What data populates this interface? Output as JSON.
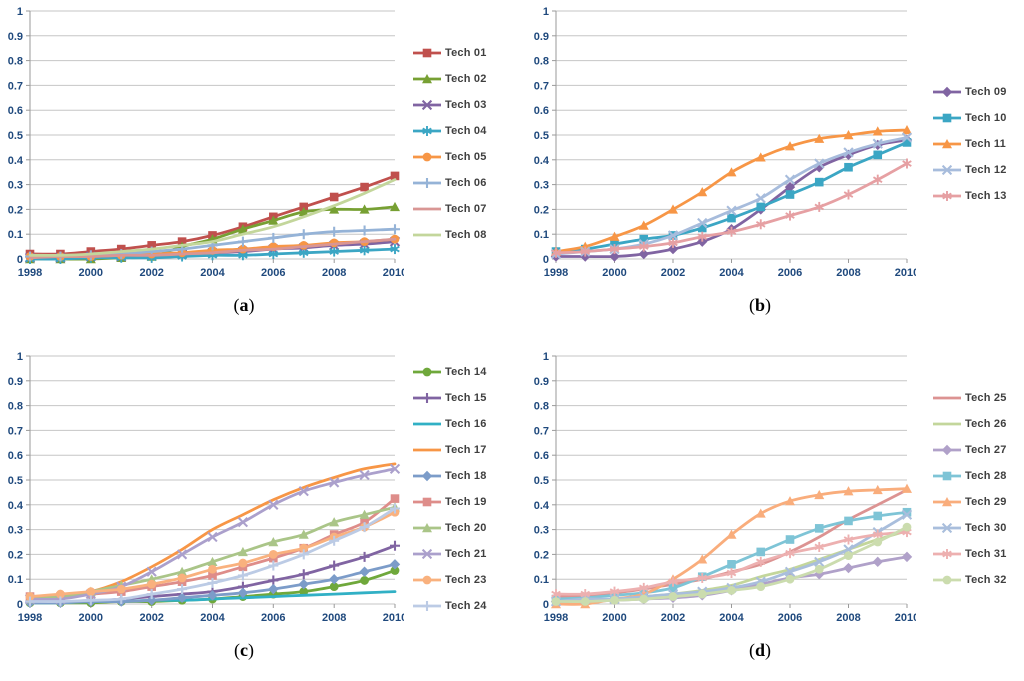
{
  "figure": {
    "background": "#FFFFFF",
    "gridline_color": "#C6C6C6",
    "axis_line_color": "#9A9A9A",
    "axis_label_color": "#1F497D",
    "legend_text_color": "#3F3F3F",
    "panel_captions": [
      "(a)",
      "(b)",
      "(c)",
      "(d)"
    ]
  },
  "chart_data": [
    {
      "id": "a",
      "type": "line",
      "caption_letter": "a",
      "title": "",
      "xlabel": "",
      "ylabel": "",
      "grid": true,
      "legend_position": "right",
      "ylim": [
        0,
        1
      ],
      "y_ticks": [
        "1",
        "0.9",
        "0.8",
        "0.7",
        "0.6",
        "0.5",
        "0.4",
        "0.3",
        "0.2",
        "0.1",
        "0"
      ],
      "x": [
        1998,
        1999,
        2000,
        2001,
        2002,
        2003,
        2004,
        2005,
        2006,
        2007,
        2008,
        2009,
        2010
      ],
      "x_ticks": [
        1998,
        2000,
        2002,
        2004,
        2006,
        2008,
        2010
      ],
      "series": [
        {
          "name": "Tech 01",
          "color": "#C0504D",
          "marker": "square",
          "values": [
            0.02,
            0.02,
            0.03,
            0.04,
            0.055,
            0.07,
            0.095,
            0.13,
            0.17,
            0.21,
            0.25,
            0.29,
            0.335
          ]
        },
        {
          "name": "Tech 02",
          "color": "#77A033",
          "marker": "triangle",
          "values": [
            0.0,
            0.0,
            0.0,
            0.005,
            0.01,
            0.05,
            0.08,
            0.12,
            0.155,
            0.19,
            0.2,
            0.2,
            0.21
          ]
        },
        {
          "name": "Tech 03",
          "color": "#8064A2",
          "marker": "x",
          "values": [
            0.005,
            0.005,
            0.01,
            0.01,
            0.015,
            0.02,
            0.025,
            0.03,
            0.04,
            0.045,
            0.055,
            0.06,
            0.07
          ]
        },
        {
          "name": "Tech 04",
          "color": "#3BA6C4",
          "marker": "asterisk",
          "values": [
            0.0,
            0.0,
            0.005,
            0.005,
            0.005,
            0.01,
            0.015,
            0.015,
            0.02,
            0.025,
            0.03,
            0.035,
            0.04
          ]
        },
        {
          "name": "Tech 05",
          "color": "#F79646",
          "marker": "circle",
          "values": [
            0.01,
            0.01,
            0.01,
            0.015,
            0.02,
            0.025,
            0.035,
            0.04,
            0.05,
            0.055,
            0.065,
            0.07,
            0.08
          ]
        },
        {
          "name": "Tech 06",
          "color": "#95B3D7",
          "marker": "plus",
          "values": [
            0.01,
            0.01,
            0.015,
            0.02,
            0.03,
            0.04,
            0.055,
            0.07,
            0.085,
            0.1,
            0.11,
            0.115,
            0.12
          ]
        },
        {
          "name": "Tech 07",
          "color": "#D99694",
          "marker": "none",
          "values": [
            0.005,
            0.01,
            0.01,
            0.015,
            0.015,
            0.02,
            0.025,
            0.035,
            0.04,
            0.05,
            0.06,
            0.07,
            0.08
          ]
        },
        {
          "name": "Tech 08",
          "color": "#C3D69B",
          "marker": "none",
          "values": [
            0.015,
            0.015,
            0.02,
            0.03,
            0.04,
            0.055,
            0.07,
            0.1,
            0.13,
            0.17,
            0.215,
            0.265,
            0.32
          ]
        }
      ]
    },
    {
      "id": "b",
      "type": "line",
      "caption_letter": "b",
      "title": "",
      "xlabel": "",
      "ylabel": "",
      "grid": true,
      "legend_position": "right",
      "ylim": [
        0,
        1
      ],
      "y_ticks": [
        "1",
        "0.9",
        "0.8",
        "0.7",
        "0.6",
        "0.5",
        "0.4",
        "0.3",
        "0.2",
        "0.1",
        "0"
      ],
      "x": [
        1998,
        1999,
        2000,
        2001,
        2002,
        2003,
        2004,
        2005,
        2006,
        2007,
        2008,
        2009,
        2010
      ],
      "x_ticks": [
        1998,
        2000,
        2002,
        2004,
        2006,
        2008,
        2010
      ],
      "series": [
        {
          "name": "Tech 09",
          "color": "#8064A2",
          "marker": "diamond",
          "values": [
            0.01,
            0.01,
            0.01,
            0.02,
            0.04,
            0.07,
            0.12,
            0.2,
            0.29,
            0.37,
            0.42,
            0.46,
            0.48
          ]
        },
        {
          "name": "Tech 10",
          "color": "#3BA6C4",
          "marker": "square",
          "values": [
            0.03,
            0.04,
            0.06,
            0.08,
            0.095,
            0.125,
            0.165,
            0.21,
            0.26,
            0.31,
            0.37,
            0.42,
            0.47
          ]
        },
        {
          "name": "Tech 11",
          "color": "#F79646",
          "marker": "triangle",
          "values": [
            0.03,
            0.05,
            0.09,
            0.135,
            0.2,
            0.27,
            0.35,
            0.41,
            0.455,
            0.485,
            0.5,
            0.515,
            0.52
          ]
        },
        {
          "name": "Tech 12",
          "color": "#A7BCDC",
          "marker": "x",
          "values": [
            0.02,
            0.03,
            0.04,
            0.06,
            0.095,
            0.145,
            0.195,
            0.245,
            0.32,
            0.385,
            0.43,
            0.465,
            0.49
          ]
        },
        {
          "name": "Tech 13",
          "color": "#E6A0A3",
          "marker": "asterisk",
          "values": [
            0.025,
            0.03,
            0.04,
            0.05,
            0.065,
            0.09,
            0.11,
            0.14,
            0.175,
            0.21,
            0.26,
            0.32,
            0.385
          ]
        }
      ]
    },
    {
      "id": "c",
      "type": "line",
      "caption_letter": "c",
      "title": "",
      "xlabel": "",
      "ylabel": "",
      "grid": true,
      "legend_position": "right",
      "ylim": [
        0,
        1
      ],
      "y_ticks": [
        "1",
        "0.9",
        "0.8",
        "0.7",
        "0.6",
        "0.5",
        "0.4",
        "0.3",
        "0.2",
        "0.1",
        "0"
      ],
      "x": [
        1998,
        1999,
        2000,
        2001,
        2002,
        2003,
        2004,
        2005,
        2006,
        2007,
        2008,
        2009,
        2010
      ],
      "x_ticks": [
        1998,
        2000,
        2002,
        2004,
        2006,
        2008,
        2010
      ],
      "series": [
        {
          "name": "Tech 14",
          "color": "#6FA83B",
          "marker": "circle",
          "values": [
            0.005,
            0.005,
            0.005,
            0.01,
            0.01,
            0.015,
            0.02,
            0.03,
            0.04,
            0.05,
            0.07,
            0.095,
            0.135
          ]
        },
        {
          "name": "Tech 15",
          "color": "#8064A2",
          "marker": "plus",
          "values": [
            0.01,
            0.01,
            0.01,
            0.02,
            0.03,
            0.04,
            0.05,
            0.07,
            0.095,
            0.12,
            0.155,
            0.19,
            0.235
          ]
        },
        {
          "name": "Tech 16",
          "color": "#31B0C5",
          "marker": "none",
          "values": [
            0.005,
            0.005,
            0.01,
            0.01,
            0.015,
            0.015,
            0.02,
            0.025,
            0.03,
            0.035,
            0.04,
            0.045,
            0.05
          ]
        },
        {
          "name": "Tech 17",
          "color": "#F79646",
          "marker": "none",
          "values": [
            0.03,
            0.035,
            0.05,
            0.09,
            0.15,
            0.22,
            0.3,
            0.36,
            0.42,
            0.47,
            0.51,
            0.545,
            0.565
          ]
        },
        {
          "name": "Tech 18",
          "color": "#7C9CC9",
          "marker": "diamond",
          "values": [
            0.005,
            0.005,
            0.01,
            0.01,
            0.015,
            0.025,
            0.035,
            0.045,
            0.06,
            0.08,
            0.1,
            0.13,
            0.16
          ]
        },
        {
          "name": "Tech 19",
          "color": "#DE8D8A",
          "marker": "square",
          "values": [
            0.03,
            0.03,
            0.04,
            0.05,
            0.07,
            0.09,
            0.115,
            0.15,
            0.185,
            0.225,
            0.28,
            0.33,
            0.425
          ]
        },
        {
          "name": "Tech 20",
          "color": "#AAC588",
          "marker": "triangle",
          "values": [
            0.02,
            0.03,
            0.05,
            0.075,
            0.1,
            0.13,
            0.17,
            0.21,
            0.25,
            0.28,
            0.33,
            0.36,
            0.39
          ]
        },
        {
          "name": "Tech 21",
          "color": "#ABA0CC",
          "marker": "x",
          "values": [
            0.02,
            0.02,
            0.04,
            0.07,
            0.13,
            0.2,
            0.27,
            0.33,
            0.4,
            0.455,
            0.49,
            0.52,
            0.545
          ]
        },
        {
          "name": "Tech 23",
          "color": "#F9B17E",
          "marker": "circle",
          "values": [
            0.03,
            0.04,
            0.05,
            0.06,
            0.08,
            0.105,
            0.14,
            0.165,
            0.2,
            0.225,
            0.27,
            0.31,
            0.37
          ]
        },
        {
          "name": "Tech 24",
          "color": "#BCCBE5",
          "marker": "plus",
          "values": [
            0.01,
            0.01,
            0.015,
            0.02,
            0.04,
            0.06,
            0.085,
            0.115,
            0.155,
            0.2,
            0.255,
            0.31,
            0.385
          ]
        }
      ]
    },
    {
      "id": "d",
      "type": "line",
      "caption_letter": "d",
      "title": "",
      "xlabel": "",
      "ylabel": "",
      "grid": true,
      "legend_position": "right",
      "ylim": [
        0,
        1
      ],
      "y_ticks": [
        "1",
        "0.9",
        "0.8",
        "0.7",
        "0.6",
        "0.5",
        "0.4",
        "0.3",
        "0.2",
        "0.1",
        "0"
      ],
      "x": [
        1998,
        1999,
        2000,
        2001,
        2002,
        2003,
        2004,
        2005,
        2006,
        2007,
        2008,
        2009,
        2010
      ],
      "x_ticks": [
        1998,
        2000,
        2002,
        2004,
        2006,
        2008,
        2010
      ],
      "series": [
        {
          "name": "Tech 25",
          "color": "#DC9392",
          "marker": "none",
          "values": [
            0.03,
            0.035,
            0.045,
            0.06,
            0.08,
            0.1,
            0.13,
            0.16,
            0.21,
            0.27,
            0.34,
            0.4,
            0.46
          ]
        },
        {
          "name": "Tech 26",
          "color": "#C3D69B",
          "marker": "none",
          "values": [
            0.01,
            0.01,
            0.02,
            0.03,
            0.04,
            0.055,
            0.075,
            0.11,
            0.14,
            0.18,
            0.22,
            0.26,
            0.295
          ]
        },
        {
          "name": "Tech 27",
          "color": "#B0A1C9",
          "marker": "diamond",
          "values": [
            0.01,
            0.01,
            0.015,
            0.02,
            0.025,
            0.035,
            0.055,
            0.08,
            0.105,
            0.12,
            0.145,
            0.17,
            0.19
          ]
        },
        {
          "name": "Tech 28",
          "color": "#7EC4D6",
          "marker": "square",
          "values": [
            0.02,
            0.025,
            0.035,
            0.045,
            0.065,
            0.11,
            0.16,
            0.21,
            0.26,
            0.305,
            0.335,
            0.355,
            0.37
          ]
        },
        {
          "name": "Tech 29",
          "color": "#F9AD7C",
          "marker": "triangle",
          "values": [
            0.0,
            0.0,
            0.02,
            0.04,
            0.1,
            0.18,
            0.28,
            0.365,
            0.415,
            0.44,
            0.455,
            0.46,
            0.465
          ]
        },
        {
          "name": "Tech 30",
          "color": "#A9BEDC",
          "marker": "x",
          "values": [
            0.01,
            0.02,
            0.02,
            0.03,
            0.04,
            0.05,
            0.065,
            0.09,
            0.13,
            0.17,
            0.22,
            0.29,
            0.36
          ]
        },
        {
          "name": "Tech 31",
          "color": "#EDB0B0",
          "marker": "asterisk",
          "values": [
            0.04,
            0.04,
            0.05,
            0.065,
            0.09,
            0.105,
            0.125,
            0.17,
            0.205,
            0.23,
            0.26,
            0.28,
            0.29
          ]
        },
        {
          "name": "Tech 32",
          "color": "#CBDCAE",
          "marker": "circle",
          "values": [
            0.01,
            0.01,
            0.015,
            0.02,
            0.03,
            0.04,
            0.055,
            0.07,
            0.1,
            0.14,
            0.195,
            0.25,
            0.31
          ]
        }
      ]
    }
  ]
}
